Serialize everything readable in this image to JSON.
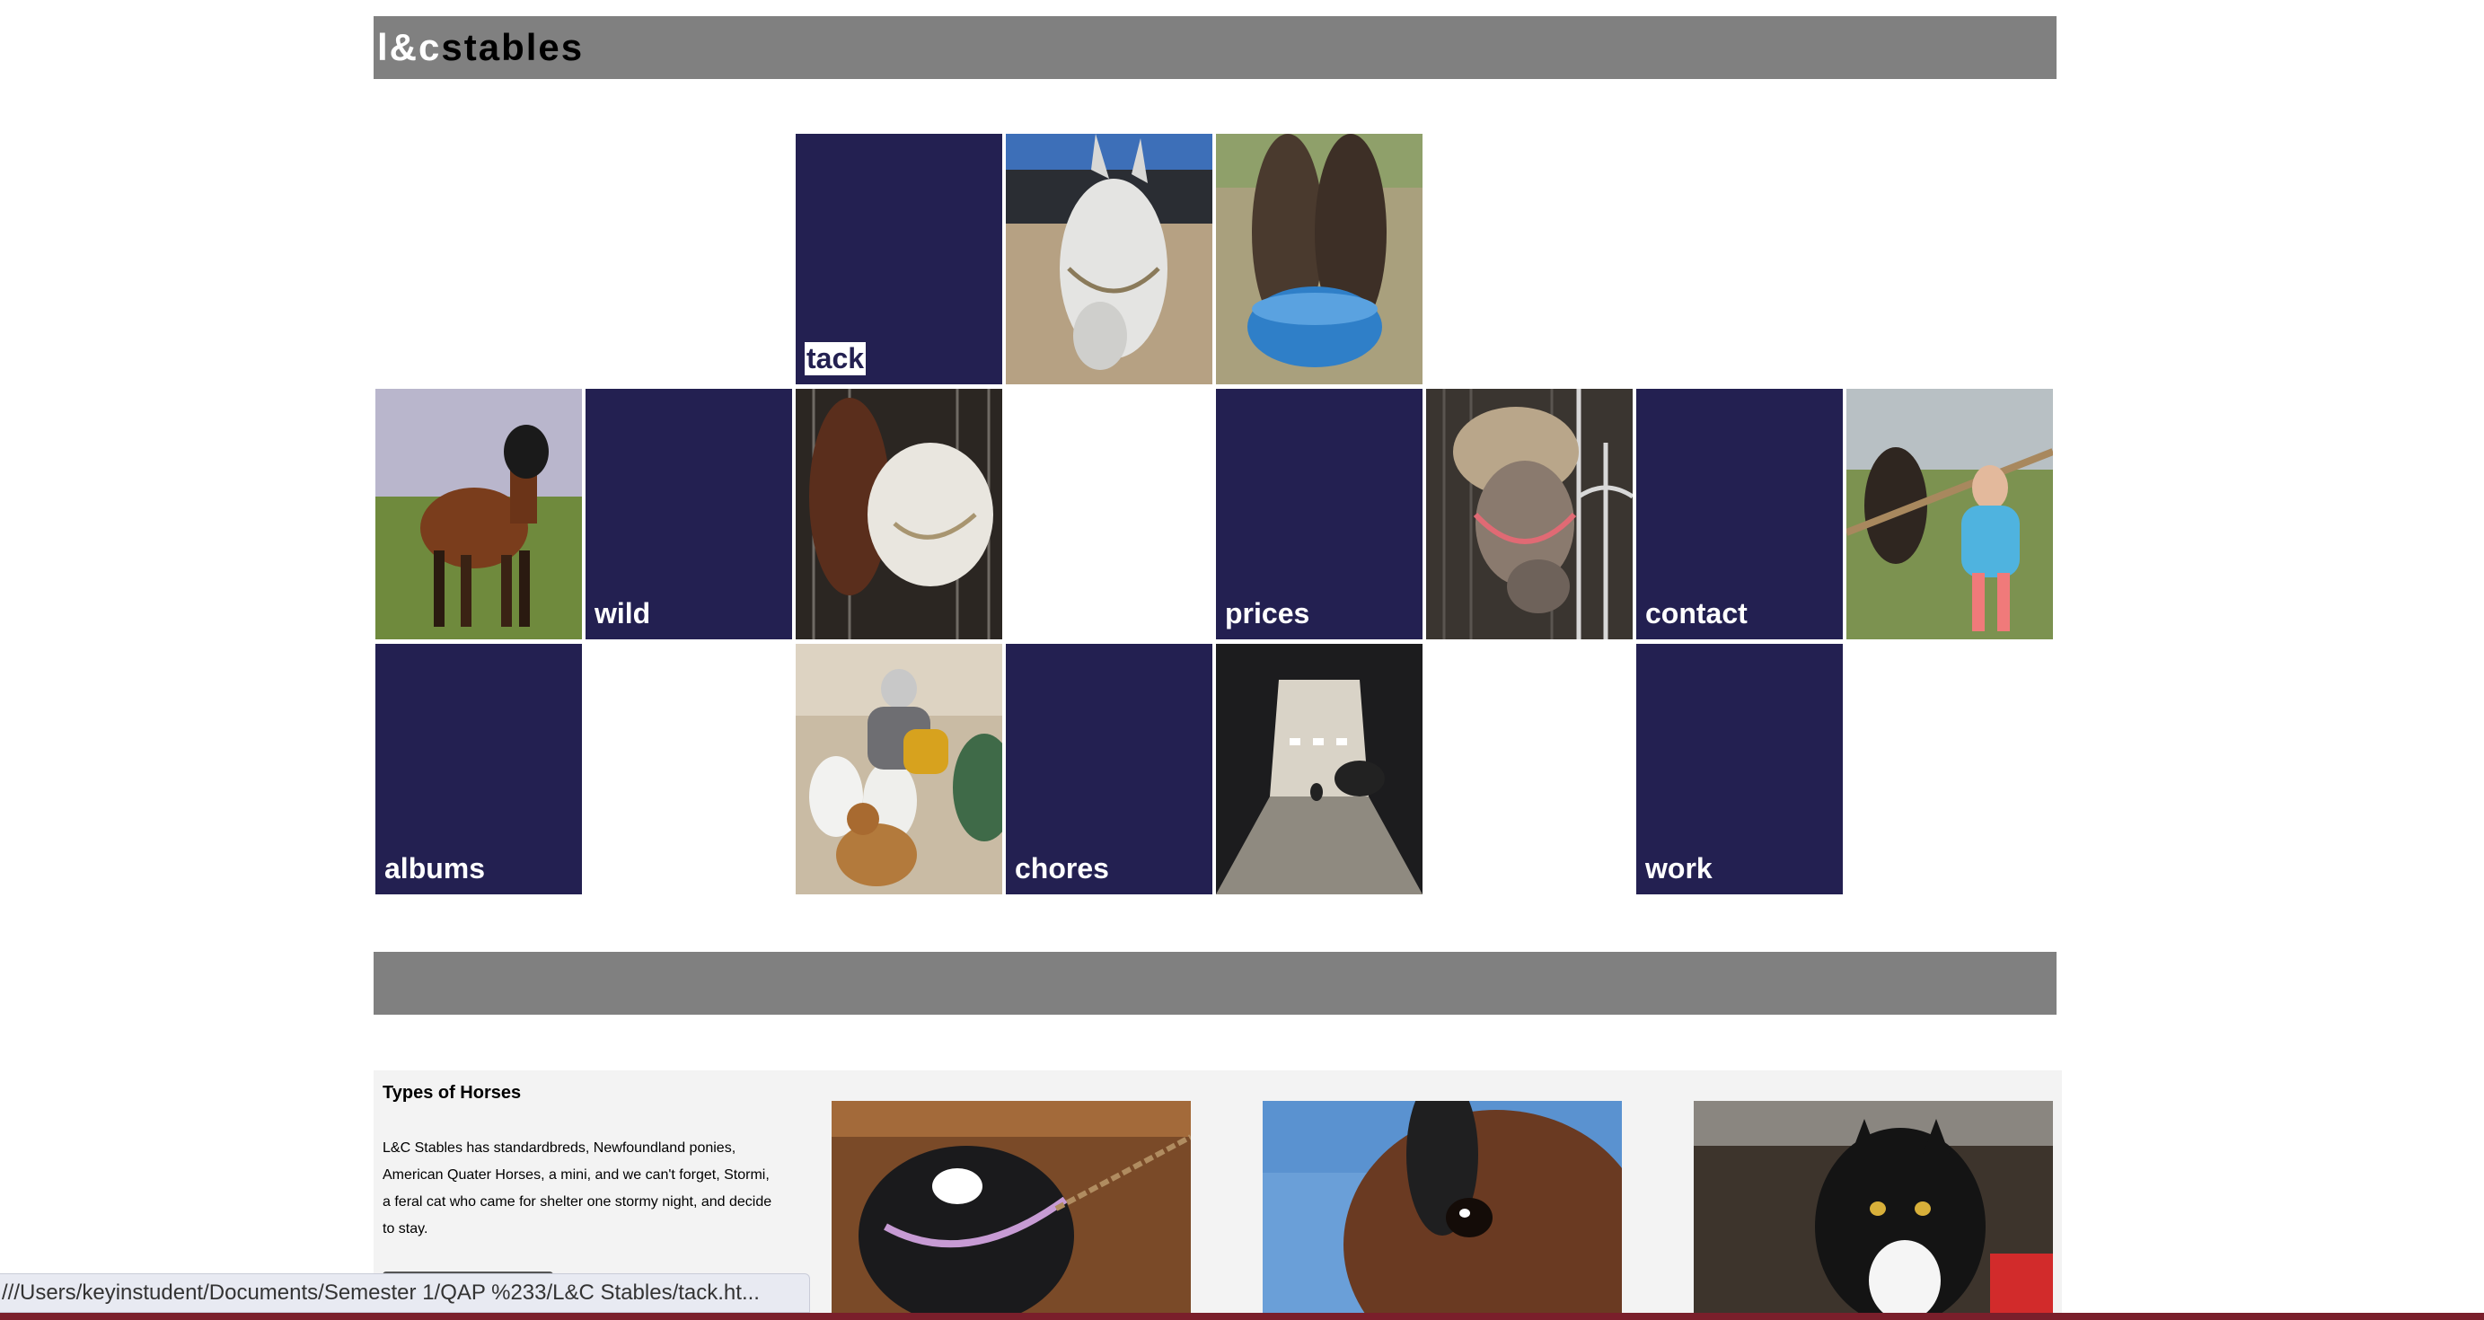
{
  "logo": {
    "part1": "l&c",
    "part2": "stables"
  },
  "nav": {
    "tack": "tack",
    "wild": "wild",
    "prices": "prices",
    "contact": "contact",
    "albums": "albums",
    "chores": "chores",
    "work": "work"
  },
  "photos": [
    "grey-horse-photo",
    "horses-eating-photo",
    "bay-horse-field-photo",
    "horses-stall-photo",
    "pony-stall-photo",
    "girl-horse-photo",
    "family-dog-photo",
    "barn-aisle-photo"
  ],
  "info": {
    "title": "Types of Horses",
    "body": "L&C Stables has standardbreds, Newfoundland ponies, American Quater Horses, a mini, and we can't forget, Stormi, a feral cat who came for shelter one stormy night, and decide to stay."
  },
  "status_url": "///Users/keyinstudent/Documents/Semester 1/QAP %233/L&C Stables/tack.ht...",
  "colors": {
    "tile": "#232051",
    "bar": "#808080",
    "panel": "#f3f3f3"
  }
}
